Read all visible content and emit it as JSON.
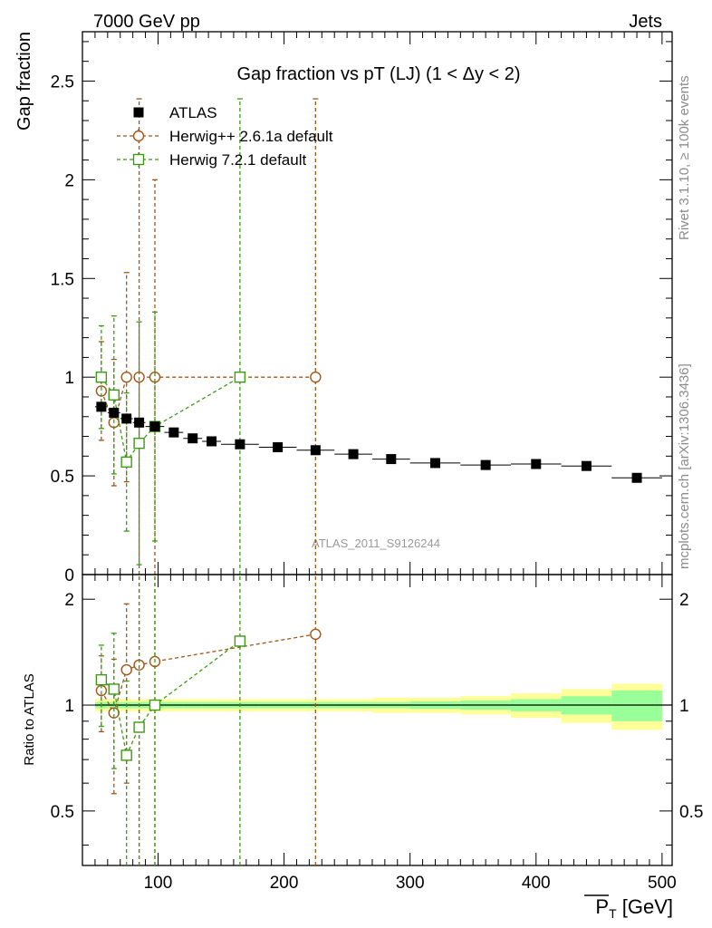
{
  "header": {
    "left": "7000 GeV pp",
    "right": "Jets"
  },
  "side": {
    "rivet": "Rivet 3.1.10, ≥ 100k events",
    "mcplots": "mcplots.cern.ch [arXiv:1306.3436]"
  },
  "chart_data": [
    {
      "type": "scatter",
      "panel": "main",
      "title": "Gap fraction vs pT (LJ) (1 < Δy < 2)",
      "watermark": "ATLAS_2011_S9126244",
      "ylabel": "Gap fraction",
      "xlim": [
        40,
        508
      ],
      "ylim": [
        0,
        2.75
      ],
      "yticks": [
        {
          "v": 0,
          "label": "0"
        },
        {
          "v": 0.5,
          "label": "0.5"
        },
        {
          "v": 1,
          "label": "1"
        },
        {
          "v": 1.5,
          "label": "1.5"
        },
        {
          "v": 2,
          "label": "2"
        },
        {
          "v": 2.5,
          "label": "2.5"
        }
      ],
      "legend_position": "top-left",
      "series": [
        {
          "name": "ATLAS",
          "style": "data",
          "color": "#000000",
          "points": [
            {
              "x": 55,
              "y": 0.85,
              "xerr": 5
            },
            {
              "x": 65,
              "y": 0.82,
              "xerr": 5
            },
            {
              "x": 75,
              "y": 0.79,
              "xerr": 5
            },
            {
              "x": 85,
              "y": 0.77,
              "xerr": 5
            },
            {
              "x": 97.5,
              "y": 0.75,
              "xerr": 7.5
            },
            {
              "x": 112.5,
              "y": 0.72,
              "xerr": 7.5
            },
            {
              "x": 127.5,
              "y": 0.69,
              "xerr": 7.5
            },
            {
              "x": 142.5,
              "y": 0.675,
              "xerr": 7.5
            },
            {
              "x": 165,
              "y": 0.66,
              "xerr": 15
            },
            {
              "x": 195,
              "y": 0.645,
              "xerr": 15
            },
            {
              "x": 225,
              "y": 0.63,
              "xerr": 15
            },
            {
              "x": 255,
              "y": 0.61,
              "xerr": 15
            },
            {
              "x": 285,
              "y": 0.585,
              "xerr": 15
            },
            {
              "x": 320,
              "y": 0.565,
              "xerr": 20
            },
            {
              "x": 360,
              "y": 0.555,
              "xerr": 20
            },
            {
              "x": 400,
              "y": 0.56,
              "xerr": 20
            },
            {
              "x": 440,
              "y": 0.55,
              "xerr": 20
            },
            {
              "x": 480,
              "y": 0.49,
              "xerr": 20
            }
          ]
        },
        {
          "name": "Herwig++ 2.6.1a default",
          "style": "circle",
          "color": "#a0561a",
          "points": [
            {
              "x": 55,
              "y": 0.93,
              "lo": 0.68,
              "hi": 1.18
            },
            {
              "x": 65,
              "y": 0.77,
              "lo": 0.45,
              "hi": 1.09
            },
            {
              "x": 75,
              "y": 1.0,
              "lo": 0.47,
              "hi": 1.53
            },
            {
              "x": 85,
              "y": 1.0,
              "lo": 0.0,
              "hi": 2.41
            },
            {
              "x": 97.5,
              "y": 1.0,
              "lo": 0.0,
              "hi": 2.0
            },
            {
              "x": 225,
              "y": 1.0,
              "lo": 0.0,
              "hi": 2.41
            }
          ]
        },
        {
          "name": "Herwig 7.2.1 default",
          "style": "square",
          "color": "#3d9a14",
          "points": [
            {
              "x": 55,
              "y": 1.0,
              "lo": 0.74,
              "hi": 1.26
            },
            {
              "x": 65,
              "y": 0.91,
              "lo": 0.51,
              "hi": 1.31
            },
            {
              "x": 75,
              "y": 0.57,
              "lo": 0.22,
              "hi": 0.92
            },
            {
              "x": 85,
              "y": 0.665,
              "lo": 0.05,
              "hi": 1.28
            },
            {
              "x": 97.5,
              "y": 0.75,
              "lo": 0.17,
              "hi": 1.33
            },
            {
              "x": 165,
              "y": 1.0,
              "lo": 0.0,
              "hi": 2.41
            }
          ]
        }
      ]
    },
    {
      "type": "scatter",
      "panel": "ratio",
      "ylabel": "Ratio to ATLAS",
      "xlabel": "P_T [GeV]",
      "xlim": [
        40,
        508
      ],
      "ylim": [
        0.35,
        2.35
      ],
      "ylog": true,
      "xticks": [
        {
          "v": 100,
          "label": "100"
        },
        {
          "v": 200,
          "label": "200"
        },
        {
          "v": 300,
          "label": "300"
        },
        {
          "v": 400,
          "label": "400"
        },
        {
          "v": 500,
          "label": "500"
        }
      ],
      "yticks": [
        {
          "v": 0.5,
          "label": "0.5"
        },
        {
          "v": 1,
          "label": "1"
        },
        {
          "v": 2,
          "label": "2"
        }
      ],
      "bands": [
        {
          "x0": 50,
          "x1": 60,
          "stat": 0.02,
          "tot": 0.04
        },
        {
          "x0": 60,
          "x1": 70,
          "stat": 0.02,
          "tot": 0.04
        },
        {
          "x0": 70,
          "x1": 80,
          "stat": 0.02,
          "tot": 0.04
        },
        {
          "x0": 80,
          "x1": 90,
          "stat": 0.02,
          "tot": 0.04
        },
        {
          "x0": 90,
          "x1": 105,
          "stat": 0.02,
          "tot": 0.04
        },
        {
          "x0": 105,
          "x1": 120,
          "stat": 0.02,
          "tot": 0.04
        },
        {
          "x0": 120,
          "x1": 135,
          "stat": 0.02,
          "tot": 0.04
        },
        {
          "x0": 135,
          "x1": 150,
          "stat": 0.02,
          "tot": 0.04
        },
        {
          "x0": 150,
          "x1": 180,
          "stat": 0.02,
          "tot": 0.04
        },
        {
          "x0": 180,
          "x1": 210,
          "stat": 0.02,
          "tot": 0.04
        },
        {
          "x0": 210,
          "x1": 240,
          "stat": 0.02,
          "tot": 0.04
        },
        {
          "x0": 240,
          "x1": 270,
          "stat": 0.02,
          "tot": 0.04
        },
        {
          "x0": 270,
          "x1": 300,
          "stat": 0.02,
          "tot": 0.05
        },
        {
          "x0": 300,
          "x1": 340,
          "stat": 0.025,
          "tot": 0.05
        },
        {
          "x0": 340,
          "x1": 380,
          "stat": 0.03,
          "tot": 0.06
        },
        {
          "x0": 380,
          "x1": 420,
          "stat": 0.04,
          "tot": 0.08
        },
        {
          "x0": 420,
          "x1": 460,
          "stat": 0.06,
          "tot": 0.11
        },
        {
          "x0": 460,
          "x1": 500,
          "stat": 0.1,
          "tot": 0.15
        }
      ],
      "series": [
        {
          "name": "Herwig++ 2.6.1a default",
          "style": "circle",
          "color": "#a0561a",
          "points": [
            {
              "x": 55,
              "y": 1.1,
              "lo": 0.84,
              "hi": 1.38
            },
            {
              "x": 65,
              "y": 0.95,
              "lo": 0.56,
              "hi": 1.35
            },
            {
              "x": 75,
              "y": 1.26,
              "lo": 0.6,
              "hi": 1.94
            },
            {
              "x": 85,
              "y": 1.3,
              "lo": 0.2,
              "hi": 3.5
            },
            {
              "x": 97.5,
              "y": 1.33,
              "lo": 0.2,
              "hi": 3.5
            },
            {
              "x": 225,
              "y": 1.59,
              "lo": 0.2,
              "hi": 3.5
            }
          ]
        },
        {
          "name": "Herwig 7.2.1 default",
          "style": "square",
          "color": "#3d9a14",
          "points": [
            {
              "x": 55,
              "y": 1.18,
              "lo": 0.87,
              "hi": 1.48
            },
            {
              "x": 65,
              "y": 1.11,
              "lo": 0.66,
              "hi": 1.6
            },
            {
              "x": 75,
              "y": 0.72,
              "lo": 0.28,
              "hi": 1.17
            },
            {
              "x": 85,
              "y": 0.865,
              "lo": 0.2,
              "hi": 3.5
            },
            {
              "x": 97.5,
              "y": 1.0,
              "lo": 0.2,
              "hi": 3.5
            },
            {
              "x": 165,
              "y": 1.52,
              "lo": 0.2,
              "hi": 3.5
            }
          ]
        }
      ]
    }
  ]
}
